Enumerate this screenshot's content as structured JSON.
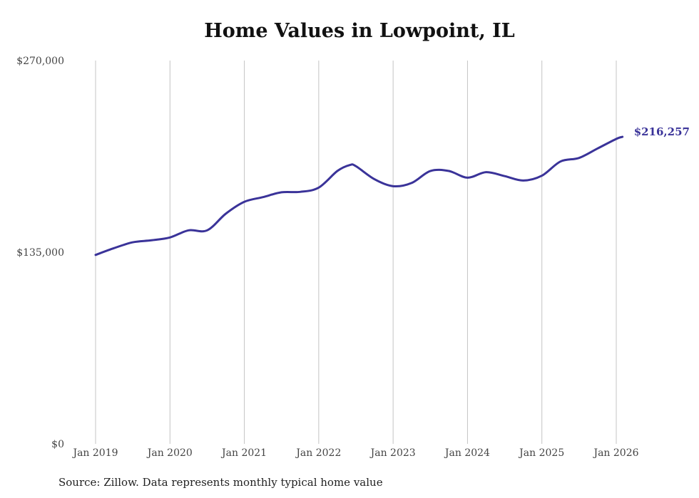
{
  "chart_data": {
    "type": "line",
    "title": "Home Values in Lowpoint, IL",
    "source": "Source: Zillow. Data represents monthly typical home value",
    "xlabel": "",
    "ylabel": "",
    "ylim": [
      0,
      270000
    ],
    "yticks": [
      0,
      135000,
      270000
    ],
    "ytick_labels": [
      "$0",
      "$135,000",
      "$270,000"
    ],
    "xticks": [
      "Jan 2019",
      "Jan 2020",
      "Jan 2021",
      "Jan 2022",
      "Jan 2023",
      "Jan 2024",
      "Jan 2025",
      "Jan 2026"
    ],
    "grid": "vertical",
    "line_color": "#3a3399",
    "end_label": "$216,257",
    "series": [
      {
        "name": "Typical home value",
        "x": [
          "2019-01",
          "2019-04",
          "2019-07",
          "2019-10",
          "2020-01",
          "2020-04",
          "2020-07",
          "2020-10",
          "2021-01",
          "2021-04",
          "2021-07",
          "2021-10",
          "2022-01",
          "2022-04",
          "2022-06",
          "2022-07",
          "2022-10",
          "2023-01",
          "2023-04",
          "2023-07",
          "2023-10",
          "2024-01",
          "2024-04",
          "2024-07",
          "2024-10",
          "2025-01",
          "2025-04",
          "2025-07",
          "2025-10",
          "2026-01",
          "2026-02"
        ],
        "values": [
          133100,
          137900,
          142000,
          143400,
          145400,
          150400,
          150400,
          162100,
          170500,
          173800,
          177200,
          177500,
          180500,
          192200,
          196400,
          195600,
          186400,
          181500,
          183800,
          192200,
          192200,
          187500,
          191400,
          188600,
          185500,
          188900,
          198900,
          201400,
          208100,
          214800,
          216257
        ]
      }
    ]
  }
}
